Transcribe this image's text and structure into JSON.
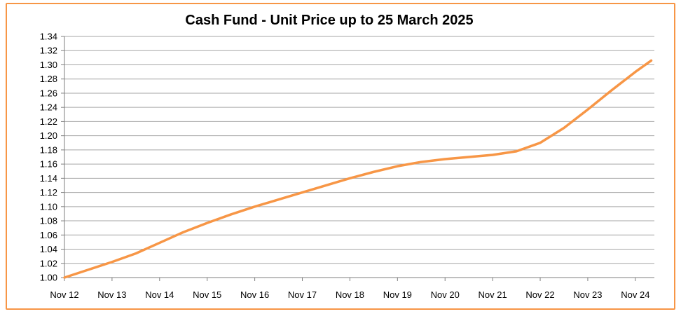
{
  "chart_data": {
    "type": "line",
    "title": "Cash Fund - Unit Price up to 25 March 2025",
    "xlabel": "",
    "ylabel": "",
    "ylim": [
      1.0,
      1.34
    ],
    "yticks": [
      "1.00",
      "1.02",
      "1.04",
      "1.06",
      "1.08",
      "1.10",
      "1.12",
      "1.14",
      "1.16",
      "1.18",
      "1.20",
      "1.22",
      "1.24",
      "1.26",
      "1.28",
      "1.30",
      "1.32",
      "1.34"
    ],
    "xticks": [
      "Nov 12",
      "Nov 13",
      "Nov 14",
      "Nov 15",
      "Nov 16",
      "Nov 17",
      "Nov 18",
      "Nov 19",
      "Nov 20",
      "Nov 21",
      "Nov 22",
      "Nov 23",
      "Nov 24"
    ],
    "grid": true,
    "legend": "none",
    "line_color": "#F79646",
    "series": [
      {
        "x": [
          "2012-11",
          "2013-05",
          "2013-11",
          "2014-05",
          "2014-11",
          "2015-05",
          "2015-11",
          "2016-05",
          "2016-11",
          "2017-05",
          "2017-11",
          "2018-05",
          "2018-11",
          "2019-05",
          "2019-11",
          "2020-05",
          "2020-11",
          "2021-05",
          "2021-11",
          "2022-05",
          "2022-11",
          "2023-05",
          "2023-11",
          "2024-05",
          "2024-11",
          "2025-03"
        ],
        "values": [
          1.0,
          1.011,
          1.022,
          1.034,
          1.049,
          1.064,
          1.077,
          1.089,
          1.1,
          1.11,
          1.12,
          1.13,
          1.14,
          1.149,
          1.157,
          1.163,
          1.167,
          1.17,
          1.173,
          1.178,
          1.19,
          1.211,
          1.237,
          1.264,
          1.29,
          1.306
        ]
      }
    ]
  }
}
